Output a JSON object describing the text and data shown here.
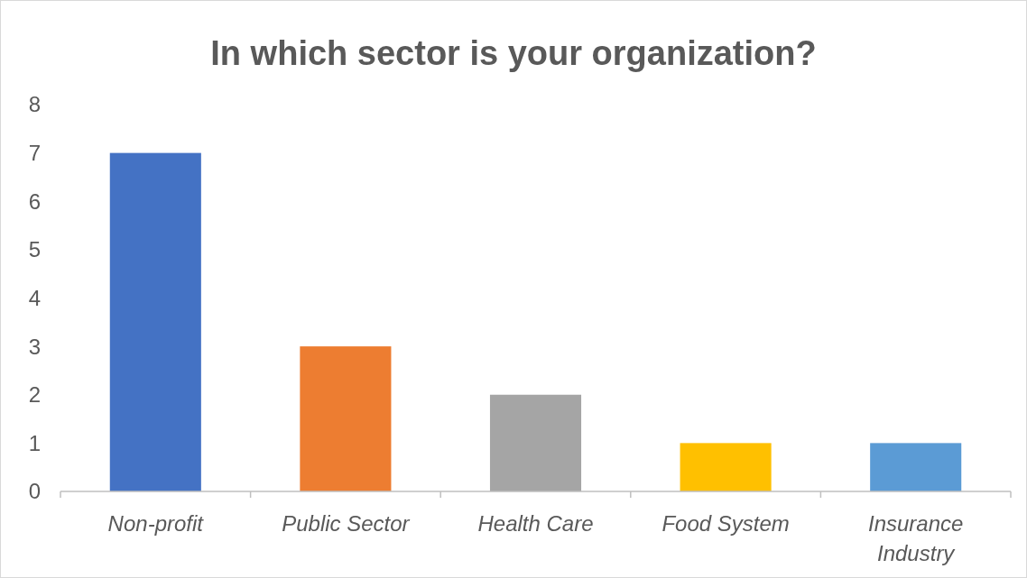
{
  "chart_data": {
    "type": "bar",
    "title": "In which sector is your organization?",
    "categories": [
      "Non-profit",
      "Public Sector",
      "Health Care",
      "Food System",
      "Insurance Industry"
    ],
    "values": [
      7,
      3,
      2,
      1,
      1
    ],
    "colors": [
      "#4472c4",
      "#ed7d31",
      "#a5a5a5",
      "#ffc000",
      "#5b9bd5"
    ],
    "ylim": [
      0,
      8
    ],
    "yticks": [
      0,
      1,
      2,
      3,
      4,
      5,
      6,
      7,
      8
    ],
    "grid": false,
    "legend": false
  }
}
